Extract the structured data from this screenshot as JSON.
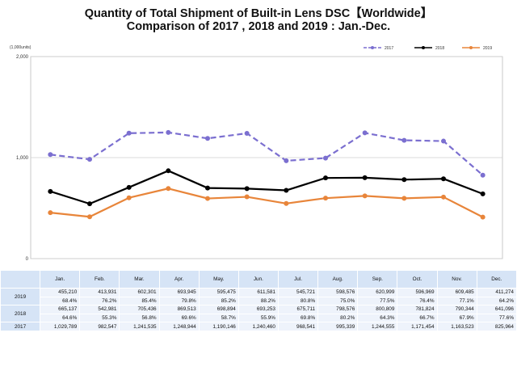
{
  "title_line1": "Quantity of Total Shipment of Built-in Lens DSC【Worldwide】",
  "title_line2": "Comparison of 2017 , 2018 and 2019 : Jan.-Dec.",
  "colors": {
    "s2017": "#7b6fd0",
    "s2018": "#000000",
    "s2019": "#e8853a",
    "grid": "#cfcfcf",
    "table_header": "#d6e4f6",
    "table_cell": "#eef3fb"
  },
  "chart_data": {
    "type": "line",
    "unit_label": "(1,000units)",
    "categories": [
      "Jan.",
      "Feb.",
      "Mar.",
      "Apr.",
      "May.",
      "Jun.",
      "Jul.",
      "Aug.",
      "Sep.",
      "Oct.",
      "Nov.",
      "Dec."
    ],
    "ylim": [
      0,
      2000
    ],
    "yticks": [
      0,
      1000,
      2000
    ],
    "ytick_labels": [
      "0",
      "1,000",
      "2,000"
    ],
    "grid": true,
    "legend_position": "top-right",
    "series": [
      {
        "name": "2017",
        "style": "dashed",
        "values": [
          1029.789,
          982.547,
          1241.535,
          1248.944,
          1190.146,
          1240.46,
          968.541,
          995.339,
          1244.555,
          1171.454,
          1163.523,
          825.964
        ]
      },
      {
        "name": "2018",
        "style": "solid",
        "values": [
          665.137,
          542.981,
          705.436,
          869.513,
          698.894,
          693.253,
          675.711,
          798.576,
          800.809,
          781.824,
          790.344,
          641.096
        ]
      },
      {
        "name": "2019",
        "style": "solid",
        "values": [
          455.21,
          413.931,
          602.301,
          693.945,
          595.475,
          611.581,
          545.721,
          598.576,
          620.999,
          596.969,
          609.485,
          411.274
        ]
      }
    ]
  },
  "table": {
    "months": [
      "Jan.",
      "Feb.",
      "Mar.",
      "Apr.",
      "May.",
      "Jun.",
      "Jul.",
      "Aug.",
      "Sep.",
      "Oct.",
      "Nov.",
      "Dec."
    ],
    "rows": [
      {
        "year": "2019",
        "values": [
          "455,210",
          "413,931",
          "602,301",
          "693,945",
          "595,475",
          "611,581",
          "545,721",
          "598,576",
          "620,999",
          "596,969",
          "609,485",
          "411,274"
        ],
        "ratios": [
          "68.4%",
          "76.2%",
          "85.4%",
          "79.8%",
          "85.2%",
          "88.2%",
          "80.8%",
          "75.0%",
          "77.5%",
          "76.4%",
          "77.1%",
          "64.2%"
        ]
      },
      {
        "year": "2018",
        "values": [
          "665,137",
          "542,981",
          "705,436",
          "869,513",
          "698,894",
          "693,253",
          "675,711",
          "798,576",
          "800,809",
          "781,824",
          "790,344",
          "641,096"
        ],
        "ratios": [
          "64.6%",
          "55.3%",
          "56.8%",
          "69.6%",
          "58.7%",
          "55.9%",
          "69.8%",
          "80.2%",
          "64.3%",
          "66.7%",
          "67.9%",
          "77.6%"
        ]
      },
      {
        "year": "2017",
        "values": [
          "1,029,789",
          "982,547",
          "1,241,535",
          "1,248,944",
          "1,190,146",
          "1,240,460",
          "968,541",
          "995,339",
          "1,244,555",
          "1,171,454",
          "1,163,523",
          "825,964"
        ]
      }
    ]
  }
}
